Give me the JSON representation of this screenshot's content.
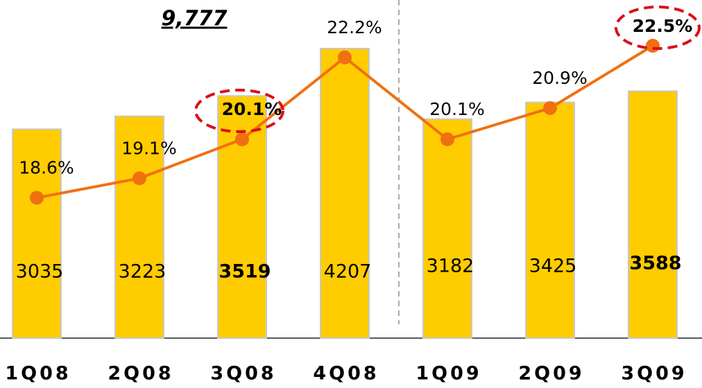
{
  "chart_data": {
    "type": "bar_line",
    "annotation": "9,777",
    "categories": [
      "1Q08",
      "2Q08",
      "3Q08",
      "4Q08",
      "1Q09",
      "2Q09",
      "3Q09"
    ],
    "series": [
      {
        "type": "bar",
        "color": "#ffcc00",
        "values": [
          3035,
          3223,
          3519,
          4207,
          3182,
          3425,
          3588
        ]
      },
      {
        "type": "line",
        "axis": "y2",
        "color": "#f07010",
        "values": [
          18.6,
          19.1,
          20.1,
          22.2,
          20.1,
          20.9,
          22.5
        ],
        "value_labels": [
          "18.6%",
          "19.1%",
          "20.1%",
          "22.2%",
          "20.1%",
          "20.9%",
          "22.5%"
        ]
      }
    ],
    "ylim": [
      0,
      4700
    ],
    "y2lim": [
      15,
      23.3
    ]
  }
}
